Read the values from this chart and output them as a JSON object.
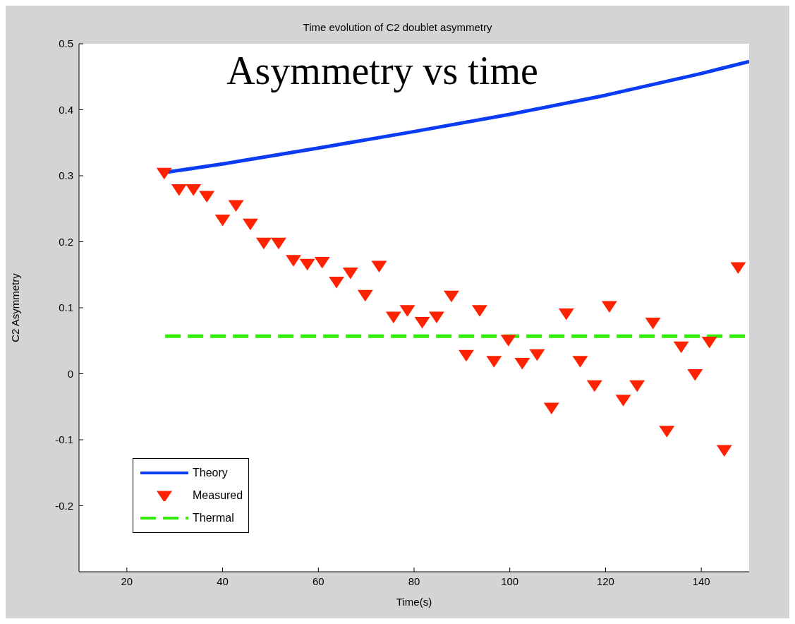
{
  "chart_data": {
    "type": "scatter",
    "title": "Time evolution of C2 doublet asymmetry",
    "xlabel": "Time(s)",
    "ylabel": "C2 Asymmetry",
    "annotations": [
      "Asymmetry vs time"
    ],
    "xlim": [
      10,
      150
    ],
    "xticks": [
      20,
      40,
      60,
      80,
      100,
      120,
      140
    ],
    "ylim": [
      -0.3,
      0.5
    ],
    "yticks": [
      -0.2,
      -0.1,
      0,
      0.1,
      0.2,
      0.3,
      0.4,
      0.5
    ],
    "legend": "bottom left",
    "series": [
      {
        "name": "Theory",
        "type": "line",
        "color": "#0a3cf5",
        "line_style": "solid",
        "marker": "none",
        "x": [
          28,
          40,
          60,
          80,
          100,
          120,
          140,
          150
        ],
        "values": [
          0.305,
          0.318,
          0.342,
          0.367,
          0.393,
          0.422,
          0.455,
          0.473
        ]
      },
      {
        "name": "Measured",
        "color": "#ff2200",
        "marker": "triangle",
        "x": [
          27.8,
          30.9,
          33.9,
          36.7,
          40.0,
          42.8,
          45.8,
          48.6,
          51.7,
          54.8,
          57.7,
          60.8,
          63.8,
          66.7,
          69.8,
          72.7,
          75.7,
          78.6,
          81.7,
          84.7,
          87.8,
          90.9,
          93.7,
          96.7,
          99.7,
          102.6,
          105.7,
          108.7,
          111.8,
          114.7,
          117.7,
          120.8,
          123.7,
          126.6,
          129.9,
          132.8,
          135.8,
          138.7,
          141.7,
          144.8,
          147.7
        ],
        "values": [
          0.305,
          0.28,
          0.28,
          0.27,
          0.234,
          0.256,
          0.228,
          0.199,
          0.199,
          0.173,
          0.167,
          0.17,
          0.14,
          0.154,
          0.12,
          0.164,
          0.087,
          0.097,
          0.079,
          0.087,
          0.119,
          0.029,
          0.097,
          0.02,
          0.052,
          0.017,
          0.03,
          -0.051,
          0.092,
          0.02,
          -0.017,
          0.103,
          -0.039,
          -0.017,
          0.078,
          -0.086,
          0.042,
          0.0,
          0.049,
          -0.115,
          0.162
        ]
      },
      {
        "name": "Thermal",
        "type": "line",
        "color": "#33ee00",
        "line_style": "dashed",
        "marker": "none",
        "x": [
          28,
          150
        ],
        "values": [
          0.057,
          0.057
        ]
      }
    ]
  }
}
